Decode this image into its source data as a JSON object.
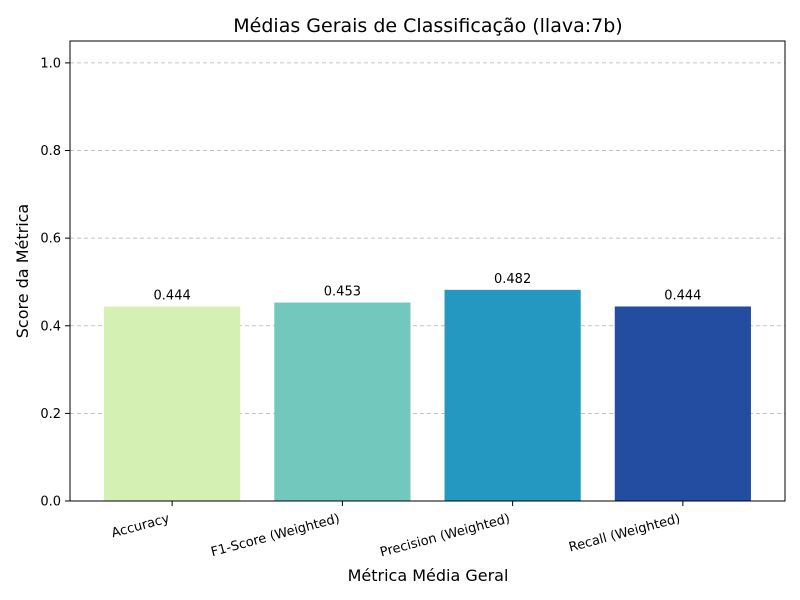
{
  "chart_data": {
    "type": "bar",
    "title": "Médias Gerais de Classificação (llava:7b)",
    "xlabel": "Métrica Média Geral",
    "ylabel": "Score da Métrica",
    "categories": [
      "Accuracy",
      "F1-Score (Weighted)",
      "Precision (Weighted)",
      "Recall (Weighted)"
    ],
    "values": [
      0.444,
      0.453,
      0.482,
      0.444
    ],
    "value_labels": [
      "0.444",
      "0.453",
      "0.482",
      "0.444"
    ],
    "colors": [
      "#d5f0b3",
      "#73c8bd",
      "#2498c1",
      "#234da0"
    ],
    "ylim": [
      0,
      1.05
    ],
    "yticks": [
      0.0,
      0.2,
      0.4,
      0.6,
      0.8,
      1.0
    ],
    "ytick_labels": [
      "0.0",
      "0.2",
      "0.4",
      "0.6",
      "0.8",
      "1.0"
    ],
    "grid": "y-dashed",
    "legend": "none"
  }
}
